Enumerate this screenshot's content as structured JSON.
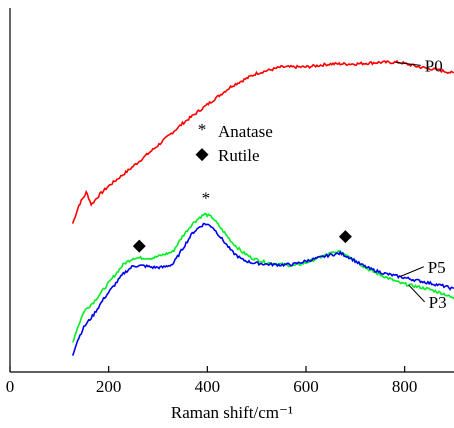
{
  "chart_data": {
    "type": "line",
    "title": "",
    "xlabel": "Raman shift/cm⁻¹",
    "ylabel": "",
    "xlim": [
      0,
      900
    ],
    "x_ticks": [
      0,
      200,
      400,
      600,
      800
    ],
    "x_tick_labels": [
      "0",
      "200",
      "400",
      "600",
      "800"
    ],
    "grid": false,
    "y_axis_ticks": false,
    "series": [
      {
        "name": "P0",
        "color": "#ff0000",
        "points": [
          [
            127,
            42
          ],
          [
            140,
            48
          ],
          [
            155,
            52
          ],
          [
            165,
            48
          ],
          [
            180,
            51
          ],
          [
            200,
            54
          ],
          [
            240,
            59
          ],
          [
            300,
            67
          ],
          [
            350,
            74
          ],
          [
            400,
            80
          ],
          [
            450,
            86
          ],
          [
            500,
            90
          ],
          [
            550,
            92
          ],
          [
            600,
            92
          ],
          [
            650,
            93
          ],
          [
            700,
            93
          ],
          [
            750,
            93.5
          ],
          [
            790,
            93.5
          ],
          [
            830,
            92
          ],
          [
            870,
            91
          ],
          [
            900,
            90
          ]
        ]
      },
      {
        "name": "P3",
        "color": "#00ee22",
        "points": [
          [
            127,
            4
          ],
          [
            135,
            8
          ],
          [
            150,
            14
          ],
          [
            170,
            17
          ],
          [
            190,
            21
          ],
          [
            210,
            25
          ],
          [
            230,
            29
          ],
          [
            250,
            31
          ],
          [
            270,
            31
          ],
          [
            290,
            31
          ],
          [
            310,
            32
          ],
          [
            330,
            33
          ],
          [
            350,
            38
          ],
          [
            370,
            42
          ],
          [
            385,
            44
          ],
          [
            395,
            45
          ],
          [
            410,
            44
          ],
          [
            430,
            40
          ],
          [
            450,
            36
          ],
          [
            470,
            33
          ],
          [
            490,
            31
          ],
          [
            520,
            29.5
          ],
          [
            550,
            29
          ],
          [
            575,
            28.5
          ],
          [
            600,
            29.5
          ],
          [
            625,
            31
          ],
          [
            650,
            32.5
          ],
          [
            670,
            33
          ],
          [
            690,
            31.5
          ],
          [
            710,
            29
          ],
          [
            730,
            27
          ],
          [
            760,
            25
          ],
          [
            790,
            23
          ],
          [
            820,
            22
          ],
          [
            850,
            21
          ],
          [
            880,
            19.5
          ],
          [
            900,
            18
          ]
        ]
      },
      {
        "name": "P5",
        "color": "#0000ee",
        "points": [
          [
            127,
            0
          ],
          [
            135,
            4
          ],
          [
            150,
            9
          ],
          [
            170,
            13
          ],
          [
            190,
            18
          ],
          [
            210,
            22
          ],
          [
            230,
            26
          ],
          [
            250,
            28.5
          ],
          [
            270,
            28.5
          ],
          [
            290,
            28
          ],
          [
            310,
            28
          ],
          [
            330,
            29
          ],
          [
            350,
            34
          ],
          [
            370,
            39
          ],
          [
            385,
            41
          ],
          [
            395,
            42
          ],
          [
            410,
            41
          ],
          [
            430,
            37
          ],
          [
            450,
            33
          ],
          [
            470,
            30.5
          ],
          [
            490,
            29.5
          ],
          [
            520,
            29
          ],
          [
            550,
            28.8
          ],
          [
            575,
            29
          ],
          [
            600,
            30
          ],
          [
            625,
            31
          ],
          [
            650,
            32
          ],
          [
            670,
            32.5
          ],
          [
            690,
            31
          ],
          [
            710,
            29
          ],
          [
            730,
            27.5
          ],
          [
            760,
            26
          ],
          [
            790,
            25
          ],
          [
            820,
            24
          ],
          [
            850,
            23
          ],
          [
            880,
            22
          ],
          [
            900,
            21
          ]
        ]
      }
    ],
    "markers": [
      {
        "symbol": "◆",
        "x": 262,
        "y": 35
      },
      {
        "symbol": "*",
        "x": 397,
        "y": 50
      },
      {
        "symbol": "◆",
        "x": 680,
        "y": 38
      }
    ],
    "legend": {
      "placement": "center",
      "entries": [
        {
          "symbol": "*",
          "label": "Anatase"
        },
        {
          "symbol": "◆",
          "label": "Rutile"
        }
      ]
    },
    "series_labels": [
      {
        "text": "P0",
        "series": "P0",
        "anchor_x": 782
      },
      {
        "text": "P5",
        "series": "P5",
        "anchor_x": 790
      },
      {
        "text": "P3",
        "series": "P3",
        "anchor_x": 808
      }
    ]
  }
}
